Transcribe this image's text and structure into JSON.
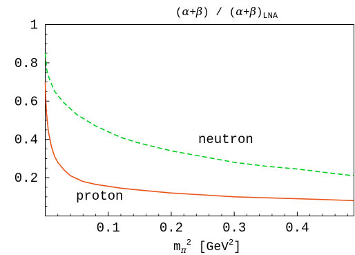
{
  "chart_data": {
    "type": "line",
    "title": {
      "open1": "(",
      "alpha1": "α",
      "plus1": "+",
      "beta1": "β",
      "close1": ")",
      "divider": " / ",
      "open2": "(",
      "alpha2": "α",
      "plus2": "+",
      "beta2": "β",
      "close2": ")",
      "subscript": "LNA"
    },
    "xlabel": {
      "m": "m",
      "pi": "π",
      "sup": "2",
      "open": " [GeV",
      "sup2": "2",
      "close": "]"
    },
    "ylabel": "",
    "xlim": [
      0,
      0.49
    ],
    "ylim": [
      0,
      1
    ],
    "xticks": [
      {
        "value": 0.1,
        "label": "0.1"
      },
      {
        "value": 0.2,
        "label": "0.2"
      },
      {
        "value": 0.3,
        "label": "0.3"
      },
      {
        "value": 0.4,
        "label": "0.4"
      }
    ],
    "yticks": [
      {
        "value": 0.2,
        "label": "0.2"
      },
      {
        "value": 0.4,
        "label": "0.4"
      },
      {
        "value": 0.6,
        "label": "0.6"
      },
      {
        "value": 0.8,
        "label": "0.8"
      },
      {
        "value": 1.0,
        "label": "1"
      }
    ],
    "grid": false,
    "legend": "none",
    "series": [
      {
        "name": "neutron",
        "color": "#00cc22",
        "dash": "dashed",
        "x": [
          0.0,
          0.002,
          0.005,
          0.01,
          0.015,
          0.02,
          0.03,
          0.04,
          0.05,
          0.06,
          0.08,
          0.1,
          0.12,
          0.15,
          0.2,
          0.25,
          0.3,
          0.35,
          0.4,
          0.45,
          0.49
        ],
        "y": [
          0.85,
          0.77,
          0.73,
          0.69,
          0.65,
          0.63,
          0.59,
          0.56,
          0.53,
          0.51,
          0.47,
          0.44,
          0.41,
          0.38,
          0.34,
          0.31,
          0.28,
          0.26,
          0.245,
          0.225,
          0.21
        ]
      },
      {
        "name": "proton",
        "color": "#e8541a",
        "dash": "solid",
        "x": [
          0.0,
          0.001,
          0.002,
          0.005,
          0.01,
          0.015,
          0.02,
          0.03,
          0.04,
          0.05,
          0.06,
          0.08,
          0.1,
          0.12,
          0.15,
          0.2,
          0.25,
          0.3,
          0.35,
          0.4,
          0.45,
          0.49
        ],
        "y": [
          0.7,
          0.6,
          0.54,
          0.44,
          0.36,
          0.31,
          0.28,
          0.24,
          0.21,
          0.195,
          0.18,
          0.165,
          0.155,
          0.145,
          0.135,
          0.12,
          0.11,
          0.1,
          0.095,
          0.09,
          0.085,
          0.08
        ]
      }
    ]
  }
}
